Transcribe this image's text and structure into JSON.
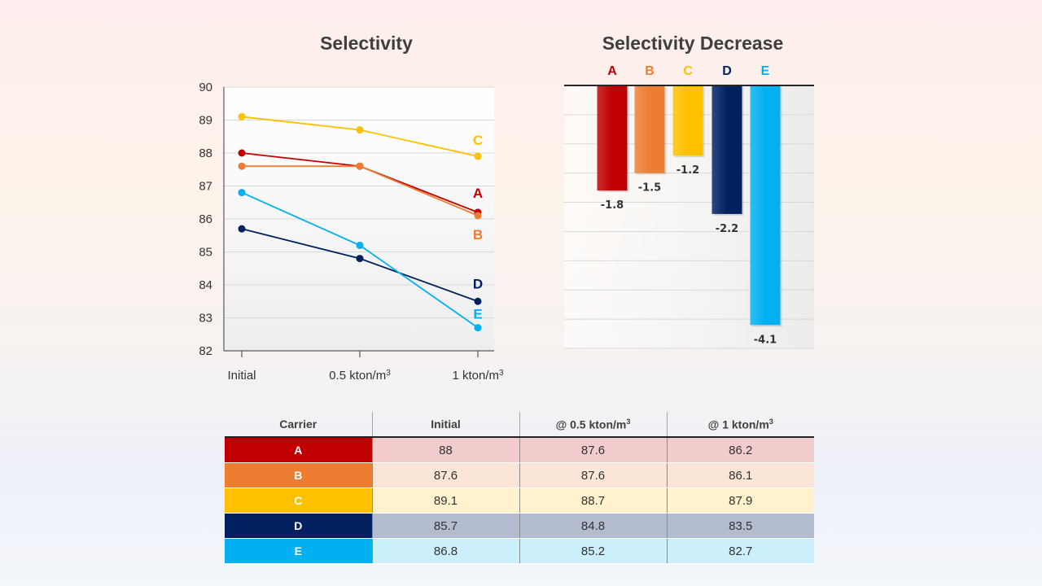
{
  "colors": {
    "A": "#c00000",
    "B": "#ed7d31",
    "C": "#ffc000",
    "D": "#002060",
    "E": "#00b0f0"
  },
  "chart_data": [
    {
      "type": "line",
      "title": "Selectivity",
      "xlabel": "",
      "ylabel": "",
      "categories": [
        "Initial",
        "0.5 kton/m³",
        "1 kton/m³"
      ],
      "ylim": [
        82,
        90
      ],
      "yticks": [
        82,
        83,
        84,
        85,
        86,
        87,
        88,
        89,
        90
      ],
      "grid": true,
      "series": [
        {
          "name": "A",
          "values": [
            88,
            87.6,
            86.2
          ]
        },
        {
          "name": "B",
          "values": [
            87.6,
            87.6,
            86.1
          ]
        },
        {
          "name": "C",
          "values": [
            89.1,
            88.7,
            87.9
          ]
        },
        {
          "name": "D",
          "values": [
            85.7,
            84.8,
            83.5
          ]
        },
        {
          "name": "E",
          "values": [
            86.8,
            85.2,
            82.7
          ]
        }
      ]
    },
    {
      "type": "bar",
      "title": "Selectivity Decrease",
      "xlabel": "",
      "ylabel": "",
      "categories": [
        "A",
        "B",
        "C",
        "D",
        "E"
      ],
      "values": [
        -1.8,
        -1.5,
        -1.2,
        -2.2,
        -4.1
      ],
      "value_labels": [
        "-1.8",
        "-1.5",
        "-1.2",
        "-2.2",
        "-4.1"
      ],
      "ylim": [
        -4.5,
        0
      ],
      "grid": true
    }
  ],
  "table": {
    "headers": [
      "Carrier",
      "Initial",
      "@ 0.5 kton/m³",
      "@ 1 kton/m³"
    ],
    "rows": [
      {
        "carrier": "A",
        "initial": "88",
        "half": "87.6",
        "one": "86.2"
      },
      {
        "carrier": "B",
        "initial": "87.6",
        "half": "87.6",
        "one": "86.1"
      },
      {
        "carrier": "C",
        "initial": "89.1",
        "half": "88.7",
        "one": "87.9"
      },
      {
        "carrier": "D",
        "initial": "85.7",
        "half": "84.8",
        "one": "83.5"
      },
      {
        "carrier": "E",
        "initial": "86.8",
        "half": "85.2",
        "one": "82.7"
      }
    ]
  }
}
